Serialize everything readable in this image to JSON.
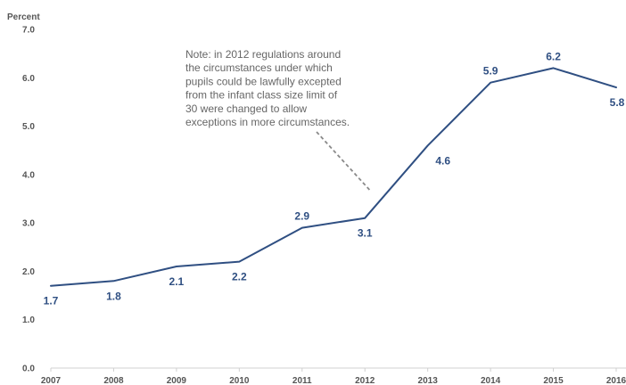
{
  "chart_data": {
    "type": "line",
    "title": "",
    "xlabel": "",
    "ylabel": "Percent",
    "x": [
      "2007",
      "2008",
      "2009",
      "2010",
      "2011",
      "2012",
      "2013",
      "2014",
      "2015",
      "2016"
    ],
    "series": [
      {
        "values": [
          1.7,
          1.8,
          2.1,
          2.2,
          2.9,
          3.1,
          4.6,
          5.9,
          6.2,
          5.8
        ],
        "data_labels": [
          "1.7",
          "1.8",
          "2.1",
          "2.2",
          "2.9",
          "3.1",
          "4.6",
          "5.9",
          "6.2",
          "5.8"
        ]
      }
    ],
    "ylim": [
      0,
      7
    ],
    "yticks": [
      "0.0",
      "1.0",
      "2.0",
      "3.0",
      "4.0",
      "5.0",
      "6.0",
      "7.0"
    ],
    "grid": false,
    "legend": "none",
    "annotation": {
      "lines": [
        "Note: in 2012 regulations around",
        "the circumstances under which",
        "pupils could be lawfully excepted",
        "from the infant class size limit of",
        "30 were changed to allow",
        "exceptions in more circumstances."
      ],
      "points_to_x": "2012"
    },
    "colors": {
      "line": "#2f4f82",
      "axis": "#d0d0d0",
      "tick_text": "#555555",
      "note_text": "#666666"
    }
  }
}
